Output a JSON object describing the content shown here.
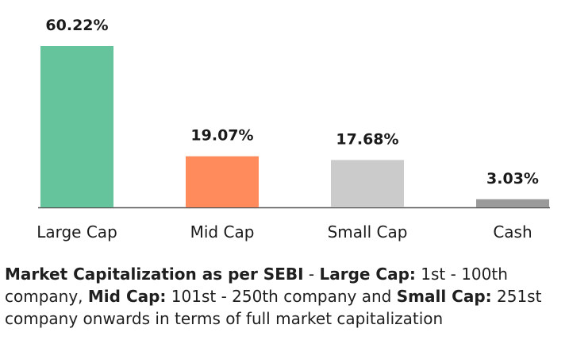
{
  "chart_data": {
    "type": "bar",
    "categories": [
      "Large Cap",
      "Mid Cap",
      "Small Cap",
      "Cash"
    ],
    "values": [
      60.22,
      19.07,
      17.68,
      3.03
    ],
    "value_labels": [
      "60.22%",
      "19.07%",
      "17.68%",
      "3.03%"
    ],
    "colors": [
      "#66c49d",
      "#ff8a5c",
      "#cbcbcb",
      "#9a9a9a"
    ],
    "ylim": [
      0,
      60.22
    ],
    "grid": false,
    "legend": "none",
    "title": "",
    "xlabel": "",
    "ylabel": ""
  },
  "note": {
    "heading": "Market Capitalization as per SEBI",
    "sep1": " - ",
    "large_label": "Large Cap:",
    "large_text": " 1st - 100th company, ",
    "mid_label": "Mid Cap:",
    "mid_text": " 101st - 250th company and ",
    "small_label": "Small Cap:",
    "small_text": " 251st company onwards in terms of full market capitalization"
  }
}
